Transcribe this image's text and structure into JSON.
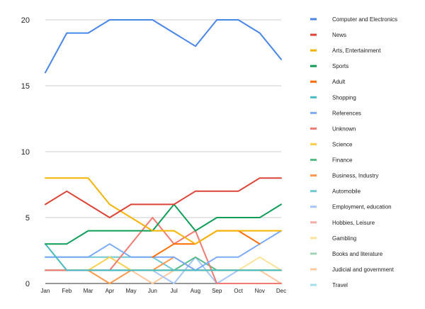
{
  "chart_data": {
    "type": "line",
    "title": "",
    "xlabel": "",
    "ylabel": "",
    "categories": [
      "Jan",
      "Feb",
      "Mar",
      "Apr",
      "May",
      "Jun",
      "Jul",
      "Aug",
      "Sep",
      "Oct",
      "Nov",
      "Dec"
    ],
    "ylim": [
      0,
      20
    ],
    "yticks": [
      0,
      5,
      10,
      15,
      20
    ],
    "grid": true,
    "legend_position": "right",
    "series": [
      {
        "name": "Computer and Electronics",
        "color": "#4a86e8",
        "values": [
          16,
          19,
          19,
          20,
          20,
          20,
          19,
          18,
          20,
          20,
          19,
          17
        ]
      },
      {
        "name": "News",
        "color": "#db4437",
        "values": [
          6,
          7,
          6,
          5,
          6,
          6,
          6,
          7,
          7,
          7,
          8,
          8
        ]
      },
      {
        "name": "Arts, Entertainment",
        "color": "#f4b400",
        "values": [
          8,
          8,
          8,
          6,
          5,
          4,
          4,
          3,
          4,
          4,
          4,
          4
        ]
      },
      {
        "name": "Sports",
        "color": "#0f9d58",
        "values": [
          3,
          3,
          4,
          4,
          4,
          4,
          6,
          4,
          5,
          5,
          5,
          6
        ]
      },
      {
        "name": "Adult",
        "color": "#ff6d00",
        "values": [
          null,
          null,
          null,
          null,
          null,
          2,
          3,
          3,
          4,
          4,
          3,
          null
        ]
      },
      {
        "name": "Shopping",
        "color": "#46bdc6",
        "values": [
          3,
          1,
          1,
          1,
          1,
          1,
          1,
          1,
          1,
          1,
          1,
          1
        ]
      },
      {
        "name": "References",
        "color": "#7baaf7",
        "values": [
          2,
          2,
          2,
          3,
          2,
          2,
          2,
          1,
          2,
          2,
          3,
          4
        ]
      },
      {
        "name": "Unknown",
        "color": "#f07b72",
        "values": [
          1,
          1,
          1,
          1,
          3,
          5,
          3,
          4,
          0,
          0,
          0,
          0
        ]
      },
      {
        "name": "Science",
        "color": "#fcd04f",
        "values": [
          3,
          1,
          1,
          2,
          1,
          1,
          1,
          1,
          1,
          1,
          1,
          1
        ]
      },
      {
        "name": "Finance",
        "color": "#57bb8a",
        "values": [
          1,
          1,
          1,
          1,
          1,
          1,
          1,
          2,
          1,
          1,
          1,
          1
        ]
      },
      {
        "name": "Business, Industry",
        "color": "#ff994d",
        "values": [
          1,
          1,
          1,
          0,
          1,
          1,
          2,
          1,
          1,
          1,
          1,
          1
        ]
      },
      {
        "name": "Automobile",
        "color": "#71c8d2",
        "values": [
          2,
          2,
          2,
          2,
          2,
          2,
          1,
          1,
          1,
          1,
          1,
          1
        ]
      },
      {
        "name": "Employment, education",
        "color": "#a6c6f9",
        "values": [
          1,
          1,
          1,
          1,
          1,
          1,
          0,
          2,
          0,
          1,
          1,
          1
        ]
      },
      {
        "name": "Hobbies, Leisure",
        "color": "#f6aea8",
        "values": [
          1,
          1,
          1,
          1,
          1,
          1,
          1,
          1,
          1,
          1,
          1,
          1
        ]
      },
      {
        "name": "Gambling",
        "color": "#fde29a",
        "values": [
          1,
          1,
          1,
          1,
          1,
          1,
          1,
          1,
          1,
          1,
          2,
          1
        ]
      },
      {
        "name": "Books and literature",
        "color": "#9ed7b6",
        "values": [
          1,
          1,
          1,
          1,
          1,
          1,
          1,
          1,
          1,
          1,
          1,
          1
        ]
      },
      {
        "name": "Judicial and government",
        "color": "#ffc89f",
        "values": [
          1,
          1,
          1,
          1,
          1,
          0,
          1,
          1,
          1,
          1,
          1,
          0
        ]
      },
      {
        "name": "Travel",
        "color": "#a3dfe6",
        "values": [
          1,
          1,
          1,
          1,
          1,
          1,
          1,
          1,
          1,
          1,
          1,
          1
        ]
      }
    ]
  }
}
